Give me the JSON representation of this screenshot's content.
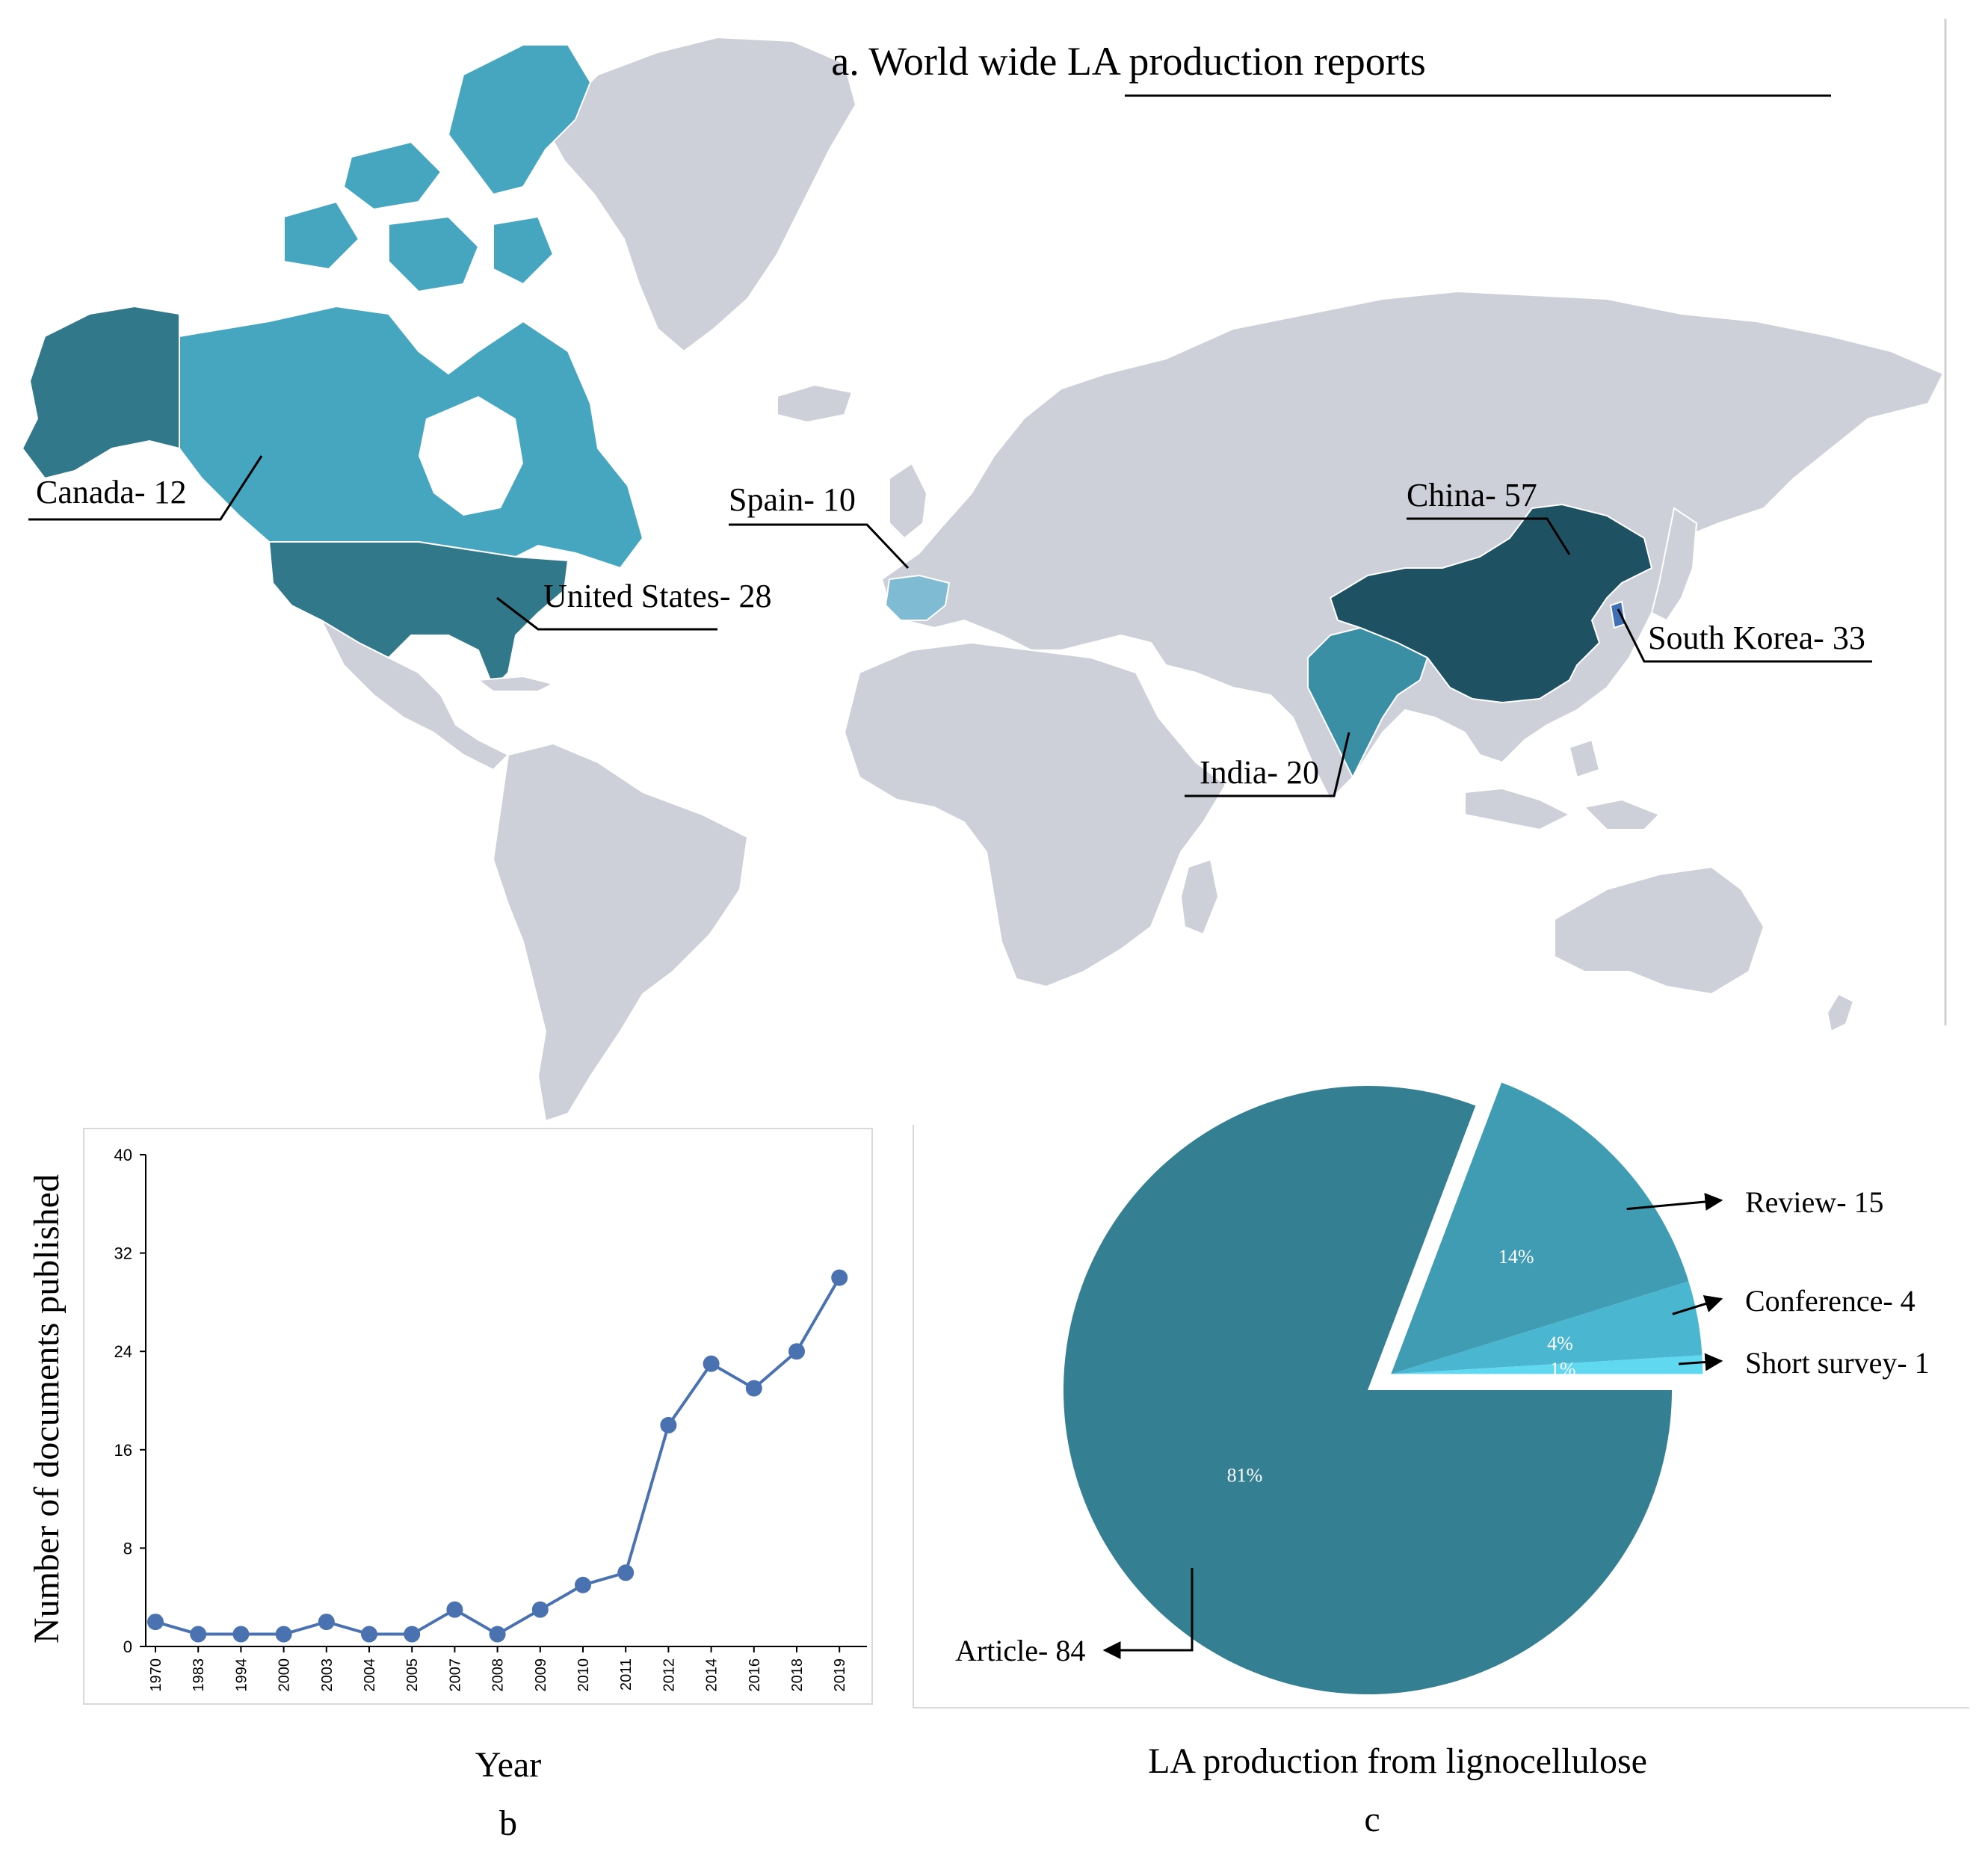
{
  "colors": {
    "land": "#cdd0d8",
    "border": "#ffffff",
    "dark": "#1e5263",
    "mid_dark": "#30788a",
    "mid": "#3a8fa4",
    "light": "#46a6bf",
    "pale": "#7fbcd4",
    "korea": "#3f6fb5",
    "line": "#4a72b0",
    "pie_article": "#357f92",
    "pie_review": "#3f9cb3",
    "pie_conference": "#4ab6cf",
    "pie_survey": "#5fd8f0"
  },
  "map": {
    "title": "a. World wide LA production reports",
    "labels": [
      {
        "id": "canada",
        "text": "Canada- 12",
        "country": "Canada",
        "value": 12,
        "shade": "light"
      },
      {
        "id": "spain",
        "text": "Spain- 10",
        "country": "Spain",
        "value": 10,
        "shade": "pale"
      },
      {
        "id": "china",
        "text": "China- 57",
        "country": "China",
        "value": 57,
        "shade": "dark"
      },
      {
        "id": "usa",
        "text": "United States- 28",
        "country": "United States",
        "value": 28,
        "shade": "mid_dark"
      },
      {
        "id": "korea",
        "text": "South Korea- 33",
        "country": "South Korea",
        "value": 33,
        "shade": "korea"
      },
      {
        "id": "india",
        "text": "India- 20",
        "country": "India",
        "value": 20,
        "shade": "mid"
      }
    ]
  },
  "chart_data": [
    {
      "type": "line",
      "panel_label": "b",
      "xlabel": "Year",
      "ylabel": "Number of documents published",
      "ylim": [
        0,
        40
      ],
      "yticks": [
        "0",
        "8",
        "16",
        "24",
        "32",
        "40"
      ],
      "categories": [
        "1970",
        "1983",
        "1994",
        "2000",
        "2003",
        "2004",
        "2005",
        "2007",
        "2008",
        "2009",
        "2010",
        "2011",
        "2012",
        "2014",
        "2016",
        "2018",
        "2019"
      ],
      "values": [
        2,
        1,
        1,
        1,
        2,
        1,
        1,
        3,
        1,
        3,
        5,
        6,
        18,
        23,
        21,
        24,
        30
      ],
      "grid": false
    },
    {
      "type": "pie",
      "panel_label": "c",
      "title": "LA production from lignocellulose",
      "slices": [
        {
          "name": "Article",
          "label": "Article- 84",
          "value": 84,
          "percent": "81%",
          "color_key": "pie_article"
        },
        {
          "name": "Review",
          "label": "Review- 15",
          "value": 15,
          "percent": "14%",
          "color_key": "pie_review"
        },
        {
          "name": "Conference",
          "label": "Conference- 4",
          "value": 4,
          "percent": "4%",
          "color_key": "pie_conference"
        },
        {
          "name": "Short survey",
          "label": "Short survey- 1",
          "value": 1,
          "percent": "1%",
          "color_key": "pie_survey"
        }
      ]
    }
  ]
}
